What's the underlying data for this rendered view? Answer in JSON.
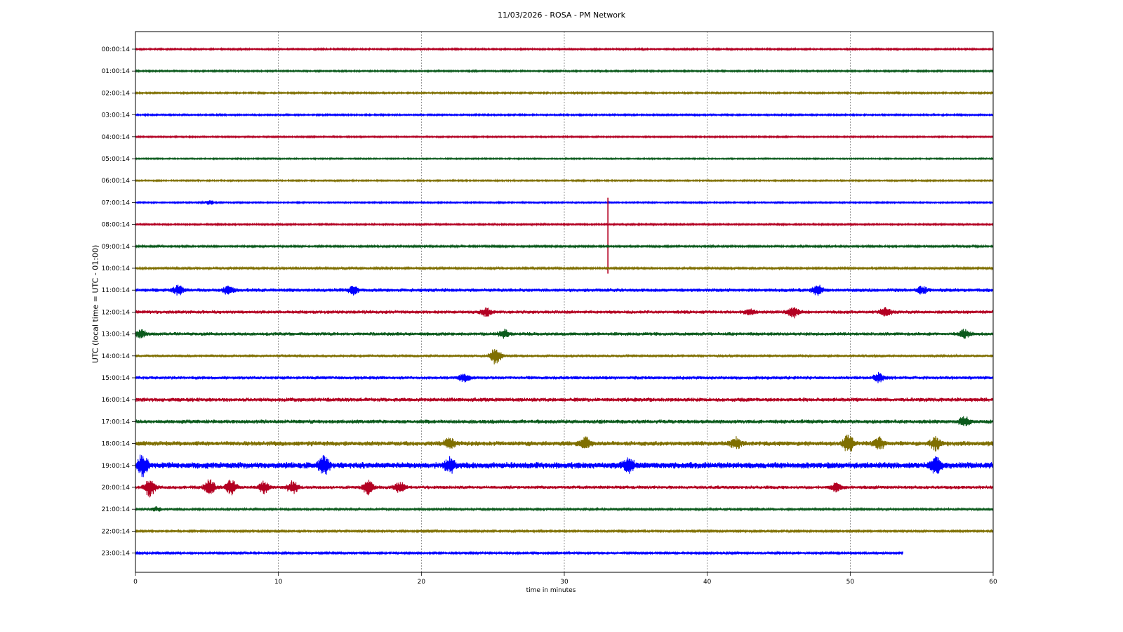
{
  "chart_data": {
    "type": "line",
    "title": "11/03/2026 - ROSA - PM Network",
    "xlabel": "time in minutes",
    "ylabel": "UTC (local time = UTC - 01:00)",
    "xlim": [
      0,
      60
    ],
    "xticks": [
      0,
      10,
      20,
      30,
      40,
      50,
      60
    ],
    "grid": "vertical dotted lines at x ticks",
    "colors": [
      "#b30022",
      "#0b5a1c",
      "#7f6f00",
      "#0000ff"
    ],
    "rows": [
      {
        "label": "00:00:14",
        "color": "#b30022",
        "amp": 1.2,
        "end": 60
      },
      {
        "label": "01:00:14",
        "color": "#0b5a1c",
        "amp": 1.2,
        "end": 60
      },
      {
        "label": "02:00:14",
        "color": "#7f6f00",
        "amp": 1.2,
        "end": 60
      },
      {
        "label": "03:00:14",
        "color": "#0000ff",
        "amp": 1.2,
        "end": 60
      },
      {
        "label": "04:00:14",
        "color": "#b30022",
        "amp": 1.1,
        "end": 60
      },
      {
        "label": "05:00:14",
        "color": "#0b5a1c",
        "amp": 1.0,
        "end": 60
      },
      {
        "label": "06:00:14",
        "color": "#7f6f00",
        "amp": 1.1,
        "end": 60
      },
      {
        "label": "07:00:14",
        "color": "#0000ff",
        "amp": 1.1,
        "end": 60,
        "events": [
          {
            "t": 5.2,
            "h": 3
          }
        ]
      },
      {
        "label": "08:00:14",
        "color": "#b30022",
        "amp": 1.2,
        "end": 60,
        "events": [
          {
            "t": 33.05,
            "h": 38,
            "type": "spike",
            "dy1": -38,
            "dy2": 70
          }
        ]
      },
      {
        "label": "09:00:14",
        "color": "#0b5a1c",
        "amp": 1.4,
        "end": 60
      },
      {
        "label": "10:00:14",
        "color": "#7f6f00",
        "amp": 1.5,
        "end": 60
      },
      {
        "label": "11:00:14",
        "color": "#0000ff",
        "amp": 3.0,
        "end": 60,
        "events": [
          {
            "t": 3.0,
            "h": 6
          },
          {
            "t": 6.5,
            "h": 5
          },
          {
            "t": 15.2,
            "h": 5
          },
          {
            "t": 47.7,
            "h": 6
          },
          {
            "t": 55,
            "h": 5
          }
        ]
      },
      {
        "label": "12:00:14",
        "color": "#b30022",
        "amp": 2.8,
        "end": 60,
        "events": [
          {
            "t": 24.5,
            "h": 5
          },
          {
            "t": 43,
            "h": 4
          },
          {
            "t": 46,
            "h": 7
          },
          {
            "t": 52.5,
            "h": 6
          }
        ]
      },
      {
        "label": "13:00:14",
        "color": "#0b5a1c",
        "amp": 2.8,
        "end": 60,
        "events": [
          {
            "t": 0.4,
            "h": 5
          },
          {
            "t": 25.8,
            "h": 5
          },
          {
            "t": 58,
            "h": 5
          }
        ]
      },
      {
        "label": "14:00:14",
        "color": "#7f6f00",
        "amp": 2.2,
        "end": 60,
        "events": [
          {
            "t": 25.2,
            "h": 12
          }
        ]
      },
      {
        "label": "15:00:14",
        "color": "#0000ff",
        "amp": 2.8,
        "end": 60,
        "events": [
          {
            "t": 23,
            "h": 5
          },
          {
            "t": 52,
            "h": 6
          }
        ]
      },
      {
        "label": "16:00:14",
        "color": "#b30022",
        "amp": 3.2,
        "end": 60
      },
      {
        "label": "17:00:14",
        "color": "#0b5a1c",
        "amp": 3.2,
        "end": 60,
        "events": [
          {
            "t": 58,
            "h": 6
          }
        ]
      },
      {
        "label": "18:00:14",
        "color": "#7f6f00",
        "amp": 3.8,
        "end": 60,
        "events": [
          {
            "t": 22,
            "h": 7
          },
          {
            "t": 31.5,
            "h": 8
          },
          {
            "t": 42,
            "h": 7
          },
          {
            "t": 49.9,
            "h": 13
          },
          {
            "t": 52,
            "h": 8
          },
          {
            "t": 56,
            "h": 8
          }
        ]
      },
      {
        "label": "19:00:14",
        "color": "#0000ff",
        "amp": 5.0,
        "end": 60,
        "events": [
          {
            "t": 0.5,
            "h": 14
          },
          {
            "t": 13.2,
            "h": 12
          },
          {
            "t": 22,
            "h": 9
          },
          {
            "t": 34.5,
            "h": 10
          },
          {
            "t": 56,
            "h": 10
          }
        ]
      },
      {
        "label": "20:00:14",
        "color": "#b30022",
        "amp": 2.8,
        "end": 60,
        "events": [
          {
            "t": 1,
            "h": 12
          },
          {
            "t": 5.2,
            "h": 11
          },
          {
            "t": 6.7,
            "h": 10
          },
          {
            "t": 9,
            "h": 8
          },
          {
            "t": 11,
            "h": 8
          },
          {
            "t": 16.3,
            "h": 10
          },
          {
            "t": 18.5,
            "h": 7
          },
          {
            "t": 49,
            "h": 5
          }
        ]
      },
      {
        "label": "21:00:14",
        "color": "#0b5a1c",
        "amp": 1.8,
        "end": 60,
        "events": [
          {
            "t": 1.5,
            "h": 3
          }
        ]
      },
      {
        "label": "22:00:14",
        "color": "#7f6f00",
        "amp": 1.6,
        "end": 60
      },
      {
        "label": "23:00:14",
        "color": "#0000ff",
        "amp": 1.6,
        "end": 53.7
      }
    ]
  }
}
